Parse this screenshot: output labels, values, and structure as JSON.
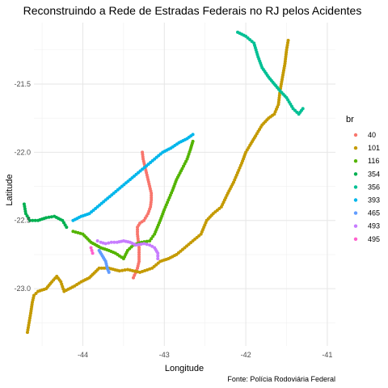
{
  "chart_data": {
    "type": "scatter",
    "title": "Reconstruindo a Rede de Estradas Federais no RJ pelos Acidentes",
    "xlabel": "Longitude",
    "ylabel": "Latitude",
    "caption": "Fonte: Polícia Rodoviária Federal",
    "xlim": [
      -44.6,
      -40.9
    ],
    "ylim": [
      -23.42,
      -21.05
    ],
    "x_ticks": [
      -44,
      -43,
      -42,
      -41
    ],
    "x_tick_labels": [
      "-44",
      "-43",
      "-42",
      "-41"
    ],
    "y_ticks": [
      -21.5,
      -22.0,
      -22.5,
      -23.0
    ],
    "y_tick_labels": [
      "-21.5",
      "-22.0",
      "-22.5",
      "-23.0"
    ],
    "grid": true,
    "legend": {
      "title": "br",
      "position": "right"
    },
    "series": [
      {
        "name": "40",
        "color": "#F8766D",
        "points": [
          [
            -43.27,
            -22.0
          ],
          [
            -43.26,
            -22.05
          ],
          [
            -43.24,
            -22.1
          ],
          [
            -43.22,
            -22.15
          ],
          [
            -43.2,
            -22.2
          ],
          [
            -43.18,
            -22.25
          ],
          [
            -43.16,
            -22.3
          ],
          [
            -43.16,
            -22.35
          ],
          [
            -43.17,
            -22.4
          ],
          [
            -43.2,
            -22.45
          ],
          [
            -43.25,
            -22.5
          ],
          [
            -43.3,
            -22.52
          ],
          [
            -43.33,
            -22.55
          ],
          [
            -43.33,
            -22.6
          ],
          [
            -43.32,
            -22.65
          ],
          [
            -43.31,
            -22.7
          ],
          [
            -43.31,
            -22.75
          ],
          [
            -43.31,
            -22.8
          ],
          [
            -43.33,
            -22.85
          ],
          [
            -43.38,
            -22.92
          ]
        ]
      },
      {
        "name": "101",
        "color": "#C49A00",
        "points": [
          [
            -44.68,
            -23.32
          ],
          [
            -44.66,
            -23.25
          ],
          [
            -44.64,
            -23.18
          ],
          [
            -44.62,
            -23.1
          ],
          [
            -44.6,
            -23.05
          ],
          [
            -44.55,
            -23.02
          ],
          [
            -44.45,
            -23.0
          ],
          [
            -44.38,
            -22.95
          ],
          [
            -44.32,
            -22.91
          ],
          [
            -44.27,
            -22.95
          ],
          [
            -44.23,
            -23.02
          ],
          [
            -44.1,
            -22.98
          ],
          [
            -44.02,
            -22.95
          ],
          [
            -43.92,
            -22.92
          ],
          [
            -43.8,
            -22.85
          ],
          [
            -43.68,
            -22.85
          ],
          [
            -43.55,
            -22.87
          ],
          [
            -43.45,
            -22.86
          ],
          [
            -43.3,
            -22.88
          ],
          [
            -43.15,
            -22.85
          ],
          [
            -43.05,
            -22.8
          ],
          [
            -42.95,
            -22.78
          ],
          [
            -42.85,
            -22.75
          ],
          [
            -42.75,
            -22.7
          ],
          [
            -42.65,
            -22.65
          ],
          [
            -42.55,
            -22.6
          ],
          [
            -42.48,
            -22.5
          ],
          [
            -42.4,
            -22.45
          ],
          [
            -42.3,
            -22.4
          ],
          [
            -42.22,
            -22.3
          ],
          [
            -42.15,
            -22.22
          ],
          [
            -42.1,
            -22.15
          ],
          [
            -42.05,
            -22.08
          ],
          [
            -42.0,
            -22.0
          ],
          [
            -41.95,
            -21.95
          ],
          [
            -41.88,
            -21.88
          ],
          [
            -41.8,
            -21.8
          ],
          [
            -41.72,
            -21.75
          ],
          [
            -41.65,
            -21.72
          ],
          [
            -41.6,
            -21.65
          ],
          [
            -41.58,
            -21.55
          ],
          [
            -41.55,
            -21.45
          ],
          [
            -41.52,
            -21.35
          ],
          [
            -41.5,
            -21.25
          ],
          [
            -41.48,
            -21.18
          ]
        ]
      },
      {
        "name": "116",
        "color": "#53B400",
        "points": [
          [
            -44.12,
            -22.58
          ],
          [
            -44.0,
            -22.6
          ],
          [
            -43.9,
            -22.66
          ],
          [
            -43.78,
            -22.7
          ],
          [
            -43.68,
            -22.72
          ],
          [
            -43.6,
            -22.74
          ],
          [
            -43.5,
            -22.78
          ],
          [
            -43.45,
            -22.72
          ],
          [
            -43.38,
            -22.68
          ],
          [
            -43.28,
            -22.66
          ],
          [
            -43.18,
            -22.65
          ],
          [
            -43.12,
            -22.6
          ],
          [
            -43.05,
            -22.5
          ],
          [
            -43.0,
            -22.42
          ],
          [
            -42.95,
            -22.35
          ],
          [
            -42.9,
            -22.28
          ],
          [
            -42.85,
            -22.2
          ],
          [
            -42.78,
            -22.12
          ],
          [
            -42.72,
            -22.05
          ],
          [
            -42.68,
            -21.98
          ],
          [
            -42.65,
            -21.92
          ]
        ]
      },
      {
        "name": "354",
        "color": "#00B050",
        "points": [
          [
            -44.72,
            -22.38
          ],
          [
            -44.7,
            -22.45
          ],
          [
            -44.65,
            -22.5
          ],
          [
            -44.55,
            -22.5
          ],
          [
            -44.45,
            -22.48
          ],
          [
            -44.35,
            -22.47
          ],
          [
            -44.25,
            -22.5
          ],
          [
            -44.2,
            -22.55
          ]
        ]
      },
      {
        "name": "356",
        "color": "#00C094",
        "points": [
          [
            -42.1,
            -21.12
          ],
          [
            -42.0,
            -21.15
          ],
          [
            -41.9,
            -21.2
          ],
          [
            -41.85,
            -21.3
          ],
          [
            -41.8,
            -21.38
          ],
          [
            -41.72,
            -21.45
          ],
          [
            -41.65,
            -21.5
          ],
          [
            -41.58,
            -21.55
          ],
          [
            -41.5,
            -21.6
          ],
          [
            -41.42,
            -21.68
          ],
          [
            -41.35,
            -21.72
          ],
          [
            -41.3,
            -21.68
          ]
        ]
      },
      {
        "name": "393",
        "color": "#00B6EB",
        "points": [
          [
            -44.12,
            -22.5
          ],
          [
            -44.02,
            -22.47
          ],
          [
            -43.92,
            -22.45
          ],
          [
            -43.82,
            -22.4
          ],
          [
            -43.72,
            -22.35
          ],
          [
            -43.62,
            -22.3
          ],
          [
            -43.52,
            -22.25
          ],
          [
            -43.42,
            -22.2
          ],
          [
            -43.32,
            -22.15
          ],
          [
            -43.22,
            -22.1
          ],
          [
            -43.12,
            -22.05
          ],
          [
            -43.02,
            -22.0
          ],
          [
            -42.92,
            -21.97
          ],
          [
            -42.82,
            -21.93
          ],
          [
            -42.72,
            -21.9
          ],
          [
            -42.65,
            -21.87
          ]
        ]
      },
      {
        "name": "465",
        "color": "#619CFF",
        "points": [
          [
            -43.8,
            -22.72
          ],
          [
            -43.76,
            -22.76
          ],
          [
            -43.72,
            -22.8
          ],
          [
            -43.7,
            -22.85
          ],
          [
            -43.68,
            -22.88
          ]
        ]
      },
      {
        "name": "493",
        "color": "#C77CFF",
        "points": [
          [
            -43.82,
            -22.65
          ],
          [
            -43.78,
            -22.66
          ],
          [
            -43.72,
            -22.67
          ],
          [
            -43.65,
            -22.66
          ],
          [
            -43.58,
            -22.66
          ],
          [
            -43.5,
            -22.65
          ],
          [
            -43.42,
            -22.66
          ],
          [
            -43.35,
            -22.68
          ],
          [
            -43.25,
            -22.67
          ],
          [
            -43.18,
            -22.68
          ],
          [
            -43.12,
            -22.7
          ],
          [
            -43.08,
            -22.74
          ],
          [
            -43.08,
            -22.78
          ]
        ]
      },
      {
        "name": "495",
        "color": "#FF61CC",
        "points": [
          [
            -43.9,
            -22.7
          ],
          [
            -43.88,
            -22.74
          ]
        ]
      }
    ]
  }
}
